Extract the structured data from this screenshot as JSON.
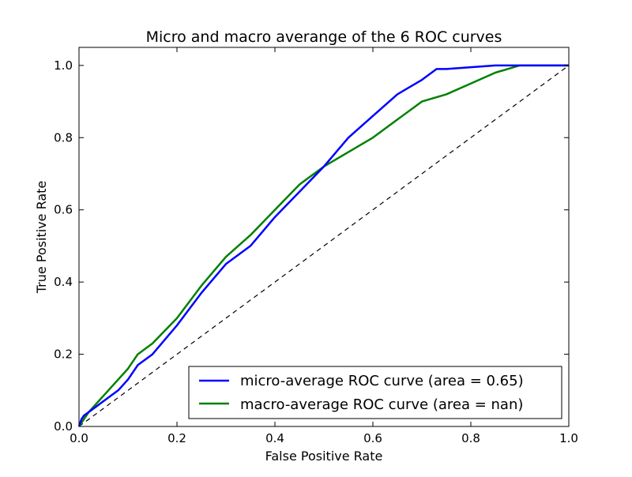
{
  "chart_data": {
    "type": "line",
    "title": "Micro and macro averange of the 6 ROC curves",
    "xlabel": "False Positive Rate",
    "ylabel": "True Positive Rate",
    "xlim": [
      0.0,
      1.0
    ],
    "ylim": [
      0.0,
      1.05
    ],
    "xticks": [
      "0.0",
      "0.2",
      "0.4",
      "0.6",
      "0.8",
      "1.0"
    ],
    "yticks": [
      "0.0",
      "0.2",
      "0.4",
      "0.6",
      "0.8",
      "1.0"
    ],
    "grid": false,
    "legend_position": "lower right",
    "series": [
      {
        "name": "micro-average ROC curve (area = 0.65)",
        "color": "#0000ff",
        "x": [
          0.0,
          0.005,
          0.01,
          0.02,
          0.04,
          0.06,
          0.08,
          0.1,
          0.12,
          0.15,
          0.2,
          0.25,
          0.3,
          0.35,
          0.4,
          0.45,
          0.5,
          0.55,
          0.6,
          0.65,
          0.7,
          0.73,
          0.75,
          0.8,
          0.85,
          0.9,
          1.0
        ],
        "y": [
          0.0,
          0.02,
          0.03,
          0.04,
          0.06,
          0.08,
          0.1,
          0.13,
          0.17,
          0.2,
          0.28,
          0.37,
          0.45,
          0.5,
          0.58,
          0.65,
          0.72,
          0.8,
          0.86,
          0.92,
          0.96,
          0.99,
          0.99,
          0.995,
          1.0,
          1.0,
          1.0
        ]
      },
      {
        "name": "macro-average ROC curve (area = nan)",
        "color": "#008000",
        "x": [
          0.0,
          0.005,
          0.01,
          0.02,
          0.04,
          0.06,
          0.08,
          0.1,
          0.12,
          0.15,
          0.2,
          0.25,
          0.3,
          0.35,
          0.4,
          0.45,
          0.5,
          0.55,
          0.6,
          0.65,
          0.7,
          0.75,
          0.8,
          0.85,
          0.9,
          1.0
        ],
        "y": [
          0.0,
          0.01,
          0.02,
          0.04,
          0.07,
          0.1,
          0.13,
          0.16,
          0.2,
          0.23,
          0.3,
          0.39,
          0.47,
          0.53,
          0.6,
          0.67,
          0.72,
          0.76,
          0.8,
          0.85,
          0.9,
          0.92,
          0.95,
          0.98,
          1.0,
          1.0
        ]
      },
      {
        "name": "",
        "color": "#000000",
        "style": "dashed",
        "x": [
          0.0,
          1.0
        ],
        "y": [
          0.0,
          1.0
        ]
      }
    ]
  }
}
